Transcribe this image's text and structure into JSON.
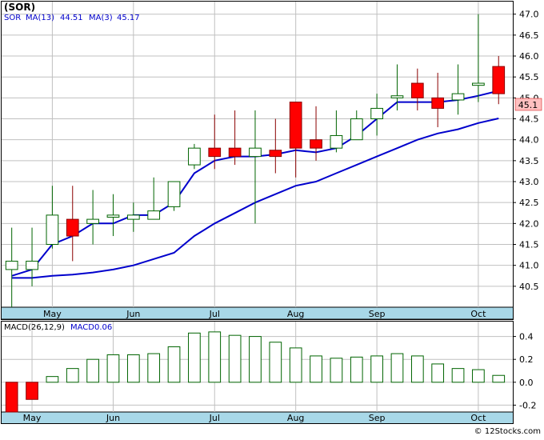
{
  "header": {
    "title": "(SOR)",
    "legend_ticker": "SOR",
    "legend_ma_long": "MA(13)",
    "legend_ma_long_value": "44.51",
    "legend_ma_short": "MA(3)",
    "legend_ma_short_value": "45.17"
  },
  "macd_legend": {
    "label": "MACD(26,12,9)",
    "name": "MACD",
    "value": "0.06"
  },
  "price_badge": "45.1",
  "footer": {
    "copyright": "© 12Stocks.com"
  },
  "colors": {
    "up_fill": "#ffffff",
    "up_stroke": "#006400",
    "down_fill": "#ff0000",
    "down_stroke": "#8b0000",
    "ma_line": "#0000cc",
    "grid": "#c0c0c0",
    "axis_bar": "#a8d8e8",
    "badge_fill": "#ffc0c0"
  },
  "chart_data": [
    {
      "type": "candlestick",
      "title": "(SOR)",
      "ylim": [
        40.0,
        47.3
      ],
      "yticks": [
        "40.5",
        "41.0",
        "41.5",
        "42.0",
        "42.5",
        "43.0",
        "43.5",
        "44.0",
        "44.5",
        "45.0",
        "45.5",
        "46.0",
        "46.5",
        "47.0"
      ],
      "x_labels": [
        {
          "label": "May",
          "index": 2
        },
        {
          "label": "Jun",
          "index": 6
        },
        {
          "label": "Jul",
          "index": 10
        },
        {
          "label": "Aug",
          "index": 14
        },
        {
          "label": "Sep",
          "index": 18
        },
        {
          "label": "Oct",
          "index": 23
        }
      ],
      "grid": true,
      "candles": [
        {
          "o": 40.9,
          "h": 41.9,
          "l": 40.0,
          "c": 41.1
        },
        {
          "o": 40.9,
          "h": 41.9,
          "l": 40.5,
          "c": 41.1
        },
        {
          "o": 41.5,
          "h": 42.9,
          "l": 41.4,
          "c": 42.2
        },
        {
          "o": 42.1,
          "h": 42.9,
          "l": 41.1,
          "c": 41.7
        },
        {
          "o": 42.0,
          "h": 42.8,
          "l": 41.5,
          "c": 42.1
        },
        {
          "o": 42.15,
          "h": 42.7,
          "l": 41.7,
          "c": 42.2
        },
        {
          "o": 42.1,
          "h": 42.5,
          "l": 41.8,
          "c": 42.2
        },
        {
          "o": 42.1,
          "h": 43.1,
          "l": 42.1,
          "c": 42.3
        },
        {
          "o": 42.4,
          "h": 43.0,
          "l": 42.3,
          "c": 43.0
        },
        {
          "o": 43.4,
          "h": 43.9,
          "l": 43.3,
          "c": 43.8
        },
        {
          "o": 43.8,
          "h": 44.6,
          "l": 43.3,
          "c": 43.6
        },
        {
          "o": 43.8,
          "h": 44.7,
          "l": 43.4,
          "c": 43.6
        },
        {
          "o": 43.6,
          "h": 44.7,
          "l": 42.0,
          "c": 43.8
        },
        {
          "o": 43.75,
          "h": 44.5,
          "l": 43.2,
          "c": 43.6
        },
        {
          "o": 44.9,
          "h": 44.9,
          "l": 43.1,
          "c": 43.8
        },
        {
          "o": 44.0,
          "h": 44.8,
          "l": 43.5,
          "c": 43.8
        },
        {
          "o": 43.8,
          "h": 44.7,
          "l": 43.7,
          "c": 44.1
        },
        {
          "o": 44.0,
          "h": 44.7,
          "l": 44.0,
          "c": 44.5
        },
        {
          "o": 44.5,
          "h": 45.1,
          "l": 44.1,
          "c": 44.75
        },
        {
          "o": 45.0,
          "h": 45.8,
          "l": 44.7,
          "c": 45.05
        },
        {
          "o": 45.35,
          "h": 45.7,
          "l": 44.7,
          "c": 45.0
        },
        {
          "o": 45.0,
          "h": 45.6,
          "l": 44.3,
          "c": 44.75
        },
        {
          "o": 44.95,
          "h": 45.8,
          "l": 44.6,
          "c": 45.1
        },
        {
          "o": 45.3,
          "h": 47.0,
          "l": 44.9,
          "c": 45.35
        },
        {
          "o": 45.75,
          "h": 46.0,
          "l": 44.85,
          "c": 45.1
        }
      ],
      "series": [
        {
          "name": "MA(13)",
          "values": [
            40.7,
            40.7,
            40.75,
            40.78,
            40.83,
            40.9,
            41.0,
            41.15,
            41.3,
            41.7,
            42.0,
            42.25,
            42.5,
            42.7,
            42.9,
            43.0,
            43.2,
            43.4,
            43.6,
            43.8,
            44.0,
            44.15,
            44.25,
            44.4,
            44.51
          ]
        },
        {
          "name": "MA(3)",
          "values": [
            40.75,
            40.9,
            41.5,
            41.7,
            42.0,
            42.0,
            42.2,
            42.2,
            42.5,
            43.2,
            43.5,
            43.6,
            43.6,
            43.65,
            43.75,
            43.7,
            43.8,
            44.1,
            44.5,
            44.9,
            44.9,
            44.9,
            44.95,
            45.05,
            45.17
          ]
        }
      ]
    },
    {
      "type": "bar",
      "title": "MACD(26,12,9)",
      "ylim": [
        -0.26,
        0.53
      ],
      "yticks": [
        "-0.2",
        "0.0",
        "0.2",
        "0.4"
      ],
      "x_labels": [
        {
          "label": "May",
          "index": 1
        },
        {
          "label": "Jun",
          "index": 5
        },
        {
          "label": "Jul",
          "index": 10
        },
        {
          "label": "Aug",
          "index": 14
        },
        {
          "label": "Sep",
          "index": 18
        },
        {
          "label": "Oct",
          "index": 23
        }
      ],
      "series": [
        {
          "name": "MACD",
          "values": [
            -0.26,
            -0.15,
            0.05,
            0.12,
            0.2,
            0.24,
            0.24,
            0.25,
            0.31,
            0.43,
            0.44,
            0.41,
            0.4,
            0.35,
            0.3,
            0.23,
            0.21,
            0.22,
            0.23,
            0.25,
            0.23,
            0.16,
            0.12,
            0.11,
            0.06
          ]
        }
      ]
    }
  ]
}
